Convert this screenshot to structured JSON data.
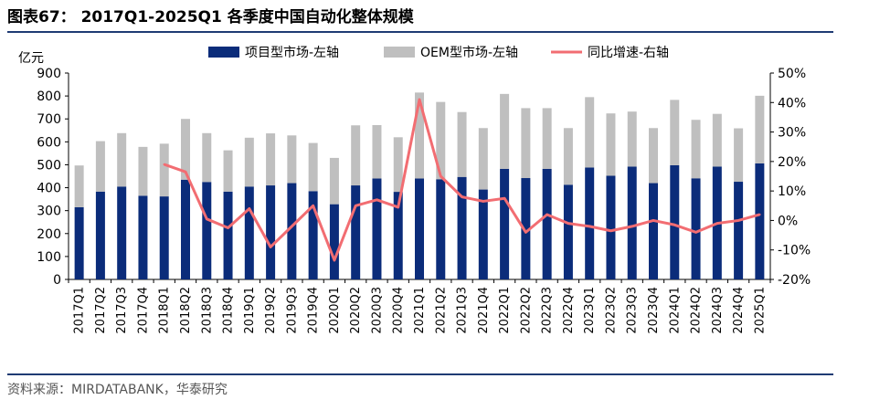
{
  "header": {
    "title": "图表67： 2017Q1-2025Q1 各季度中国自动化整体规模",
    "source": "资料来源：MIRDATABANK，华泰研究"
  },
  "colors": {
    "project": "#0b2c7a",
    "oem": "#bfbfbf",
    "growth": "#f26d72",
    "rule": "#1f3b73"
  },
  "chart_data": {
    "type": "bar",
    "categories": [
      "2017Q1",
      "2017Q2",
      "2017Q3",
      "2017Q4",
      "2018Q1",
      "2018Q2",
      "2018Q3",
      "2018Q4",
      "2019Q1",
      "2019Q2",
      "2019Q3",
      "2019Q4",
      "2020Q1",
      "2020Q2",
      "2020Q3",
      "2020Q4",
      "2021Q1",
      "2021Q2",
      "2021Q3",
      "2021Q4",
      "2022Q1",
      "2022Q2",
      "2022Q3",
      "2022Q4",
      "2023Q1",
      "2023Q2",
      "2023Q3",
      "2023Q4",
      "2024Q1",
      "2024Q2",
      "2024Q3",
      "2024Q4",
      "2025Q1"
    ],
    "stacked": true,
    "left_axis": {
      "label": "亿元",
      "min": 0,
      "max": 900,
      "ticks": [
        0,
        100,
        200,
        300,
        400,
        500,
        600,
        700,
        800,
        900
      ]
    },
    "right_axis": {
      "min": -20,
      "max": 50,
      "ticks": [
        "-20%",
        "-10%",
        "0%",
        "10%",
        "20%",
        "30%",
        "40%",
        "50%"
      ]
    },
    "legend_position": "top",
    "grid": false,
    "series": [
      {
        "name": "项目型市场-左轴",
        "type": "bar",
        "axis": "left",
        "values": [
          315,
          383,
          405,
          365,
          362,
          435,
          425,
          383,
          405,
          410,
          420,
          385,
          328,
          410,
          440,
          382,
          440,
          437,
          447,
          392,
          482,
          442,
          482,
          413,
          488,
          452,
          492,
          420,
          498,
          441,
          492,
          426,
          506
        ]
      },
      {
        "name": "OEM型市场-左轴",
        "type": "bar",
        "axis": "left",
        "values": [
          182,
          220,
          233,
          213,
          230,
          265,
          213,
          180,
          213,
          227,
          208,
          210,
          202,
          262,
          233,
          238,
          375,
          337,
          283,
          268,
          327,
          305,
          265,
          247,
          307,
          272,
          240,
          240,
          285,
          255,
          230,
          233,
          295
        ]
      },
      {
        "name": "同比增速-右轴",
        "type": "line",
        "axis": "right",
        "values": [
          null,
          null,
          null,
          null,
          19,
          16.5,
          0.5,
          -2.5,
          4,
          -9,
          -2,
          5,
          -13.5,
          5,
          7,
          4.5,
          41,
          15,
          8,
          6.5,
          7.5,
          -4,
          2,
          -1,
          -2,
          -3.5,
          -2,
          0,
          -1.5,
          -4,
          -1,
          0,
          2
        ]
      }
    ]
  }
}
